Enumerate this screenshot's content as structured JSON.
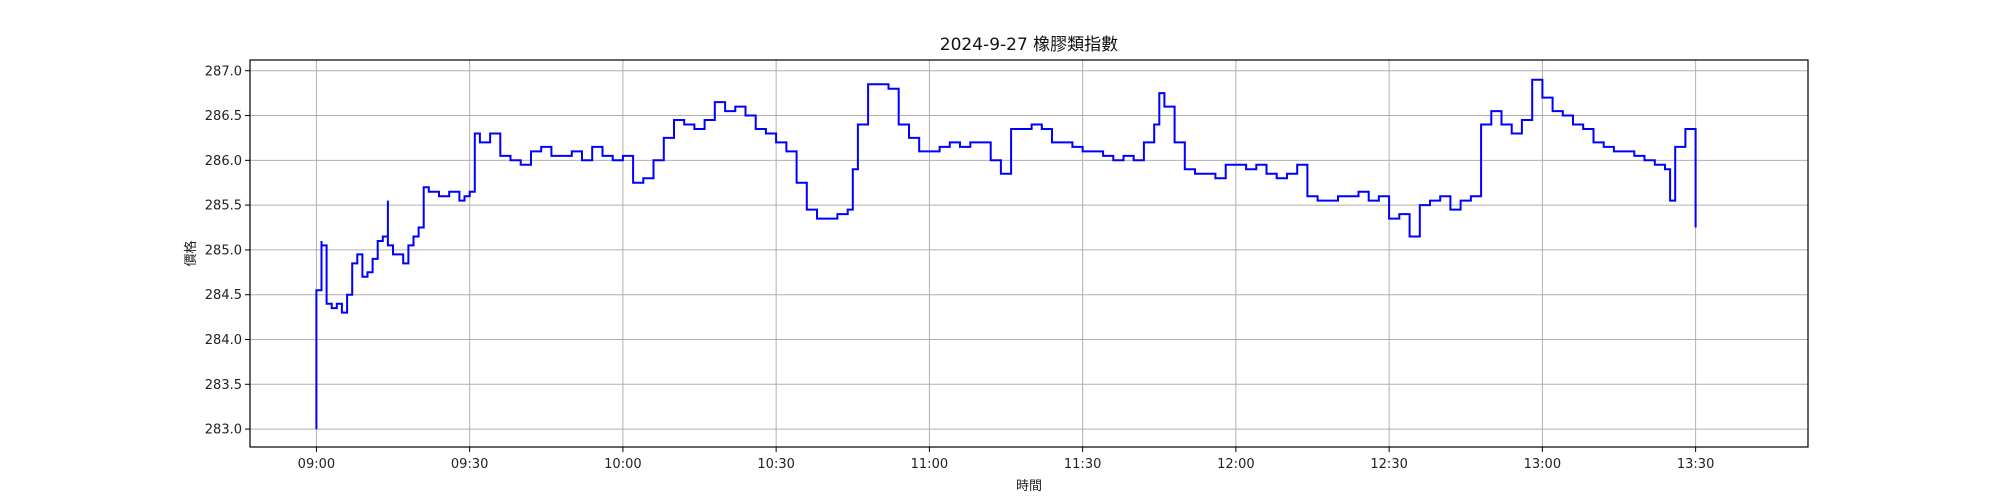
{
  "chart_data": {
    "type": "line",
    "title": "2024-9-27 橡膠類指數",
    "xlabel": "時間",
    "ylabel": "價格",
    "x_unit": "time of day",
    "xlim": [
      "08:47",
      "13:52"
    ],
    "ylim": [
      282.8,
      287.12
    ],
    "x_ticks": [
      "09:00",
      "09:30",
      "10:00",
      "10:30",
      "11:00",
      "11:30",
      "12:00",
      "12:30",
      "13:00",
      "13:30"
    ],
    "y_ticks": [
      "283.0",
      "283.5",
      "284.0",
      "284.5",
      "285.0",
      "285.5",
      "286.0",
      "286.5",
      "287.0"
    ],
    "grid": true,
    "legend": "none",
    "line_color": "#0000ff",
    "series": [
      {
        "x": [
          "09:00",
          "09:00",
          "09:01",
          "09:01",
          "09:02",
          "09:03",
          "09:04",
          "09:05",
          "09:06",
          "09:07",
          "09:08",
          "09:09",
          "09:10",
          "09:11",
          "09:12",
          "09:13",
          "09:14",
          "09:14",
          "09:15",
          "09:16",
          "09:17",
          "09:18",
          "09:19",
          "09:20",
          "09:21",
          "09:22",
          "09:24",
          "09:26",
          "09:28",
          "09:29",
          "09:30",
          "09:31",
          "09:32",
          "09:34",
          "09:36",
          "09:38",
          "09:40",
          "09:42",
          "09:44",
          "09:46",
          "09:48",
          "09:50",
          "09:52",
          "09:54",
          "09:56",
          "09:58",
          "10:00",
          "10:02",
          "10:04",
          "10:06",
          "10:08",
          "10:10",
          "10:12",
          "10:14",
          "10:16",
          "10:18",
          "10:20",
          "10:22",
          "10:24",
          "10:26",
          "10:28",
          "10:30",
          "10:32",
          "10:34",
          "10:36",
          "10:38",
          "10:40",
          "10:42",
          "10:44",
          "10:45",
          "10:46",
          "10:48",
          "10:50",
          "10:52",
          "10:54",
          "10:56",
          "10:58",
          "11:00",
          "11:02",
          "11:04",
          "11:06",
          "11:08",
          "11:10",
          "11:12",
          "11:14",
          "11:16",
          "11:18",
          "11:20",
          "11:22",
          "11:24",
          "11:26",
          "11:28",
          "11:30",
          "11:32",
          "11:34",
          "11:36",
          "11:38",
          "11:40",
          "11:42",
          "11:44",
          "11:45",
          "11:46",
          "11:48",
          "11:50",
          "11:52",
          "11:54",
          "11:56",
          "11:58",
          "12:00",
          "12:02",
          "12:04",
          "12:06",
          "12:08",
          "12:10",
          "12:12",
          "12:14",
          "12:16",
          "12:18",
          "12:20",
          "12:22",
          "12:24",
          "12:26",
          "12:28",
          "12:30",
          "12:32",
          "12:34",
          "12:36",
          "12:38",
          "12:40",
          "12:42",
          "12:44",
          "12:46",
          "12:48",
          "12:50",
          "12:52",
          "12:54",
          "12:56",
          "12:58",
          "13:00",
          "13:02",
          "13:04",
          "13:06",
          "13:08",
          "13:10",
          "13:12",
          "13:14",
          "13:16",
          "13:18",
          "13:20",
          "13:22",
          "13:24",
          "13:25",
          "13:26",
          "13:28",
          "13:30",
          "13:30"
        ],
        "y": [
          283.0,
          284.55,
          285.1,
          285.05,
          284.4,
          284.35,
          284.4,
          284.3,
          284.5,
          284.85,
          284.95,
          284.7,
          284.75,
          284.9,
          285.1,
          285.15,
          285.55,
          285.05,
          284.95,
          284.95,
          284.85,
          285.05,
          285.15,
          285.25,
          285.7,
          285.65,
          285.6,
          285.65,
          285.55,
          285.6,
          285.65,
          286.3,
          286.2,
          286.3,
          286.05,
          286.0,
          285.95,
          286.1,
          286.15,
          286.05,
          286.05,
          286.1,
          286.0,
          286.15,
          286.05,
          286.0,
          286.05,
          285.75,
          285.8,
          286.0,
          286.25,
          286.45,
          286.4,
          286.35,
          286.45,
          286.65,
          286.55,
          286.6,
          286.5,
          286.35,
          286.3,
          286.2,
          286.1,
          285.75,
          285.45,
          285.35,
          285.35,
          285.4,
          285.45,
          285.9,
          286.4,
          286.85,
          286.85,
          286.8,
          286.4,
          286.25,
          286.1,
          286.1,
          286.15,
          286.2,
          286.15,
          286.2,
          286.2,
          286.0,
          285.85,
          286.35,
          286.35,
          286.4,
          286.35,
          286.2,
          286.2,
          286.15,
          286.1,
          286.1,
          286.05,
          286.0,
          286.05,
          286.0,
          286.2,
          286.4,
          286.75,
          286.6,
          286.2,
          285.9,
          285.85,
          285.85,
          285.8,
          285.95,
          285.95,
          285.9,
          285.95,
          285.85,
          285.8,
          285.85,
          285.95,
          285.6,
          285.55,
          285.55,
          285.6,
          285.6,
          285.65,
          285.55,
          285.6,
          285.35,
          285.4,
          285.15,
          285.5,
          285.55,
          285.6,
          285.45,
          285.55,
          285.6,
          286.4,
          286.55,
          286.4,
          286.3,
          286.45,
          286.9,
          286.7,
          286.55,
          286.5,
          286.4,
          286.35,
          286.2,
          286.15,
          286.1,
          286.1,
          286.05,
          286.0,
          285.95,
          285.9,
          285.55,
          286.15,
          286.35,
          286.35,
          285.25
        ]
      }
    ]
  }
}
